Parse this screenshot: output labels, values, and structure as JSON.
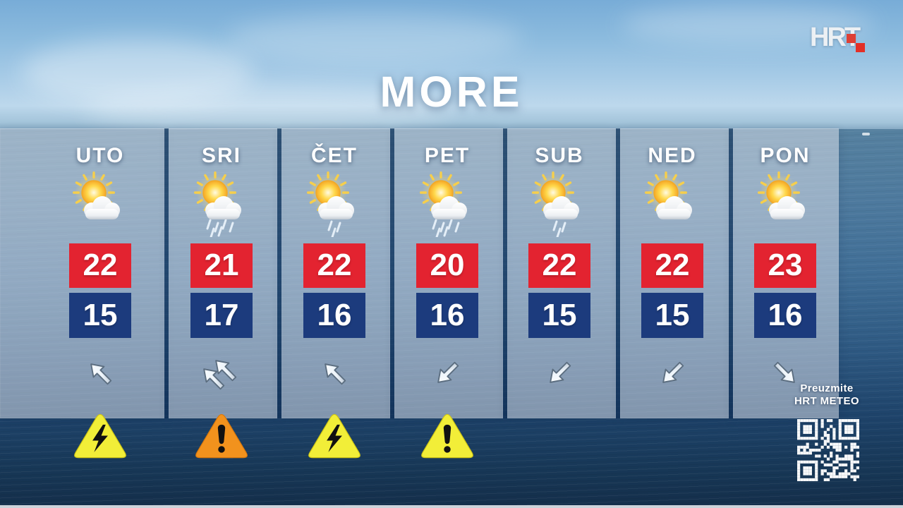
{
  "title": "MORE",
  "branding": {
    "logo_text": "HRT",
    "logo_square_color_1": "#e23a2c",
    "logo_square_color_2": "#e8281e"
  },
  "colors": {
    "high_box": "#e32330",
    "low_box": "#1c3b7d",
    "warning_yellow": "#f2ee38",
    "warning_orange": "#f2921d",
    "title_text": "#ffffff"
  },
  "promo": {
    "line1": "Preuzmite",
    "line2": "HRT METEO",
    "qr_icon": "qr-code"
  },
  "days": [
    {
      "label": "UTO",
      "icon": "sun-cloud",
      "high": "22",
      "low": "15",
      "wind": {
        "direction": "NW",
        "arrows": 1
      },
      "warning": {
        "type": "thunderstorm",
        "color": "yellow"
      }
    },
    {
      "label": "SRI",
      "icon": "sun-cloud-rain-heavy",
      "high": "21",
      "low": "17",
      "wind": {
        "direction": "NW",
        "arrows": 2
      },
      "warning": {
        "type": "alert",
        "color": "orange"
      }
    },
    {
      "label": "ČET",
      "icon": "sun-cloud-rain-light",
      "high": "22",
      "low": "16",
      "wind": {
        "direction": "NW",
        "arrows": 1
      },
      "warning": {
        "type": "thunderstorm",
        "color": "yellow"
      }
    },
    {
      "label": "PET",
      "icon": "sun-cloud-rain-heavy",
      "high": "20",
      "low": "16",
      "wind": {
        "direction": "SW",
        "arrows": 1
      },
      "warning": {
        "type": "alert",
        "color": "yellow"
      }
    },
    {
      "label": "SUB",
      "icon": "sun-cloud-rain-light",
      "high": "22",
      "low": "15",
      "wind": {
        "direction": "SW",
        "arrows": 1
      },
      "warning": null
    },
    {
      "label": "NED",
      "icon": "sun-cloud",
      "high": "22",
      "low": "15",
      "wind": {
        "direction": "SW",
        "arrows": 1
      },
      "warning": null
    },
    {
      "label": "PON",
      "icon": "sun-cloud",
      "high": "23",
      "low": "16",
      "wind": {
        "direction": "SE",
        "arrows": 1
      },
      "warning": null
    }
  ]
}
